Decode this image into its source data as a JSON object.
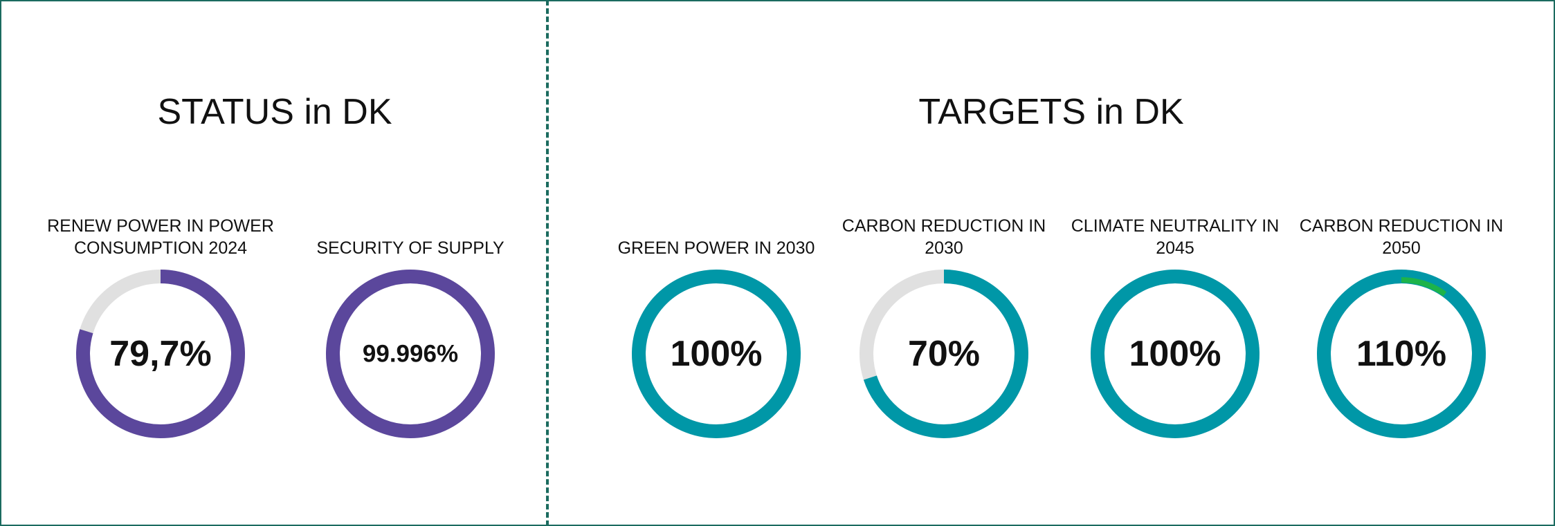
{
  "sections": [
    {
      "title": "STATUS in DK"
    },
    {
      "title": "TARGETS in DK"
    }
  ],
  "chart_data": [
    {
      "type": "donut",
      "title": "RENEW POWER IN POWER CONSUMPTION 2024",
      "value": 79.7,
      "value_label": "79,7%",
      "color": "#5b479c",
      "track_color": "#e0e0e0"
    },
    {
      "type": "donut",
      "title": "SECURITY OF SUPPLY",
      "value": 99.996,
      "value_label": "99.996%",
      "color": "#5b479c",
      "track_color": "#e0e0e0"
    },
    {
      "type": "donut",
      "title": "GREEN POWER IN 2030",
      "value": 100,
      "value_label": "100%",
      "color": "#0097a7",
      "track_color": "#e0e0e0"
    },
    {
      "type": "donut",
      "title": "CARBON REDUCTION IN 2030",
      "value": 70,
      "value_label": "70%",
      "color": "#0097a7",
      "track_color": "#e0e0e0"
    },
    {
      "type": "donut",
      "title": "CLIMATE NEUTRALITY IN 2045",
      "value": 100,
      "value_label": "100%",
      "color": "#0097a7",
      "track_color": "#e0e0e0"
    },
    {
      "type": "donut",
      "title": "CARBON REDUCTION IN 2050",
      "value": 110,
      "value_label": "110%",
      "color": "#0097a7",
      "overflow_color": "#1db34a",
      "track_color": "#e0e0e0"
    }
  ]
}
